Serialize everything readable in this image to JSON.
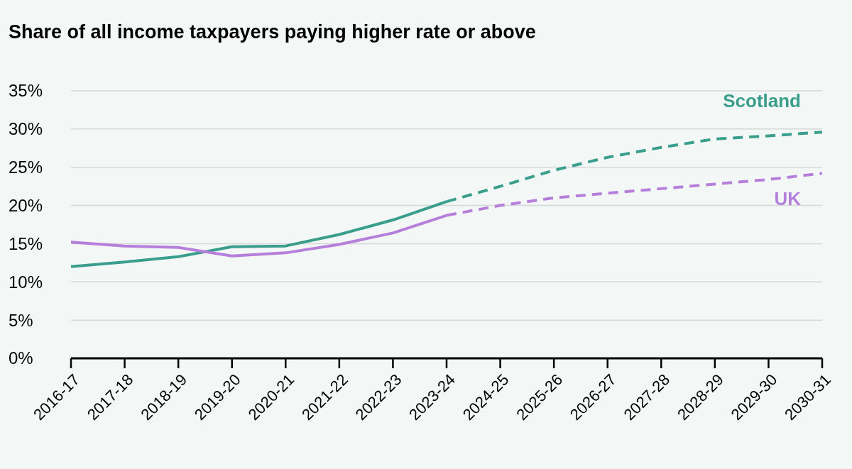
{
  "chart_data": {
    "type": "line",
    "title": "Share of all income taxpayers paying higher rate or above",
    "categories": [
      "2016-17",
      "2017-18",
      "2018-19",
      "2019-20",
      "2020-21",
      "2021-22",
      "2022-23",
      "2023-24",
      "2024-25",
      "2025-26",
      "2026-27",
      "2027-28",
      "2028-29",
      "2029-30",
      "2030-31"
    ],
    "series": [
      {
        "color": "#3a9e8c",
        "line_style": "solid",
        "values": [
          12.0,
          12.6,
          13.3,
          14.6,
          14.7,
          16.2,
          18.1,
          20.5,
          null,
          null,
          null,
          null,
          null,
          null,
          null
        ]
      },
      {
        "color": "#b77fdc",
        "line_style": "solid",
        "values": [
          15.2,
          14.7,
          14.5,
          13.4,
          13.8,
          14.9,
          16.4,
          18.7,
          null,
          null,
          null,
          null,
          null,
          null,
          null
        ]
      },
      {
        "name": "Scotland",
        "color": "#3a9e8c",
        "line_style": "dashed",
        "values": [
          null,
          null,
          null,
          null,
          null,
          null,
          null,
          20.5,
          22.5,
          24.6,
          26.3,
          27.6,
          28.7,
          29.1,
          29.6
        ]
      },
      {
        "name": "UK",
        "color": "#b77fdc",
        "line_style": "dashed",
        "values": [
          null,
          null,
          null,
          null,
          null,
          null,
          null,
          18.7,
          20.0,
          21.0,
          21.6,
          22.2,
          22.8,
          23.4,
          24.2
        ]
      }
    ],
    "ylim": [
      0,
      35
    ],
    "yticks": [
      {
        "value": 0,
        "label": "0%"
      },
      {
        "value": 5,
        "label": "5%"
      },
      {
        "value": 10,
        "label": "10%"
      },
      {
        "value": 15,
        "label": "15%"
      },
      {
        "value": 20,
        "label": "20%"
      },
      {
        "value": 25,
        "label": "25%"
      },
      {
        "value": 30,
        "label": "30%"
      },
      {
        "value": 35,
        "label": "35%"
      }
    ],
    "grid": "y",
    "marker": "none"
  }
}
